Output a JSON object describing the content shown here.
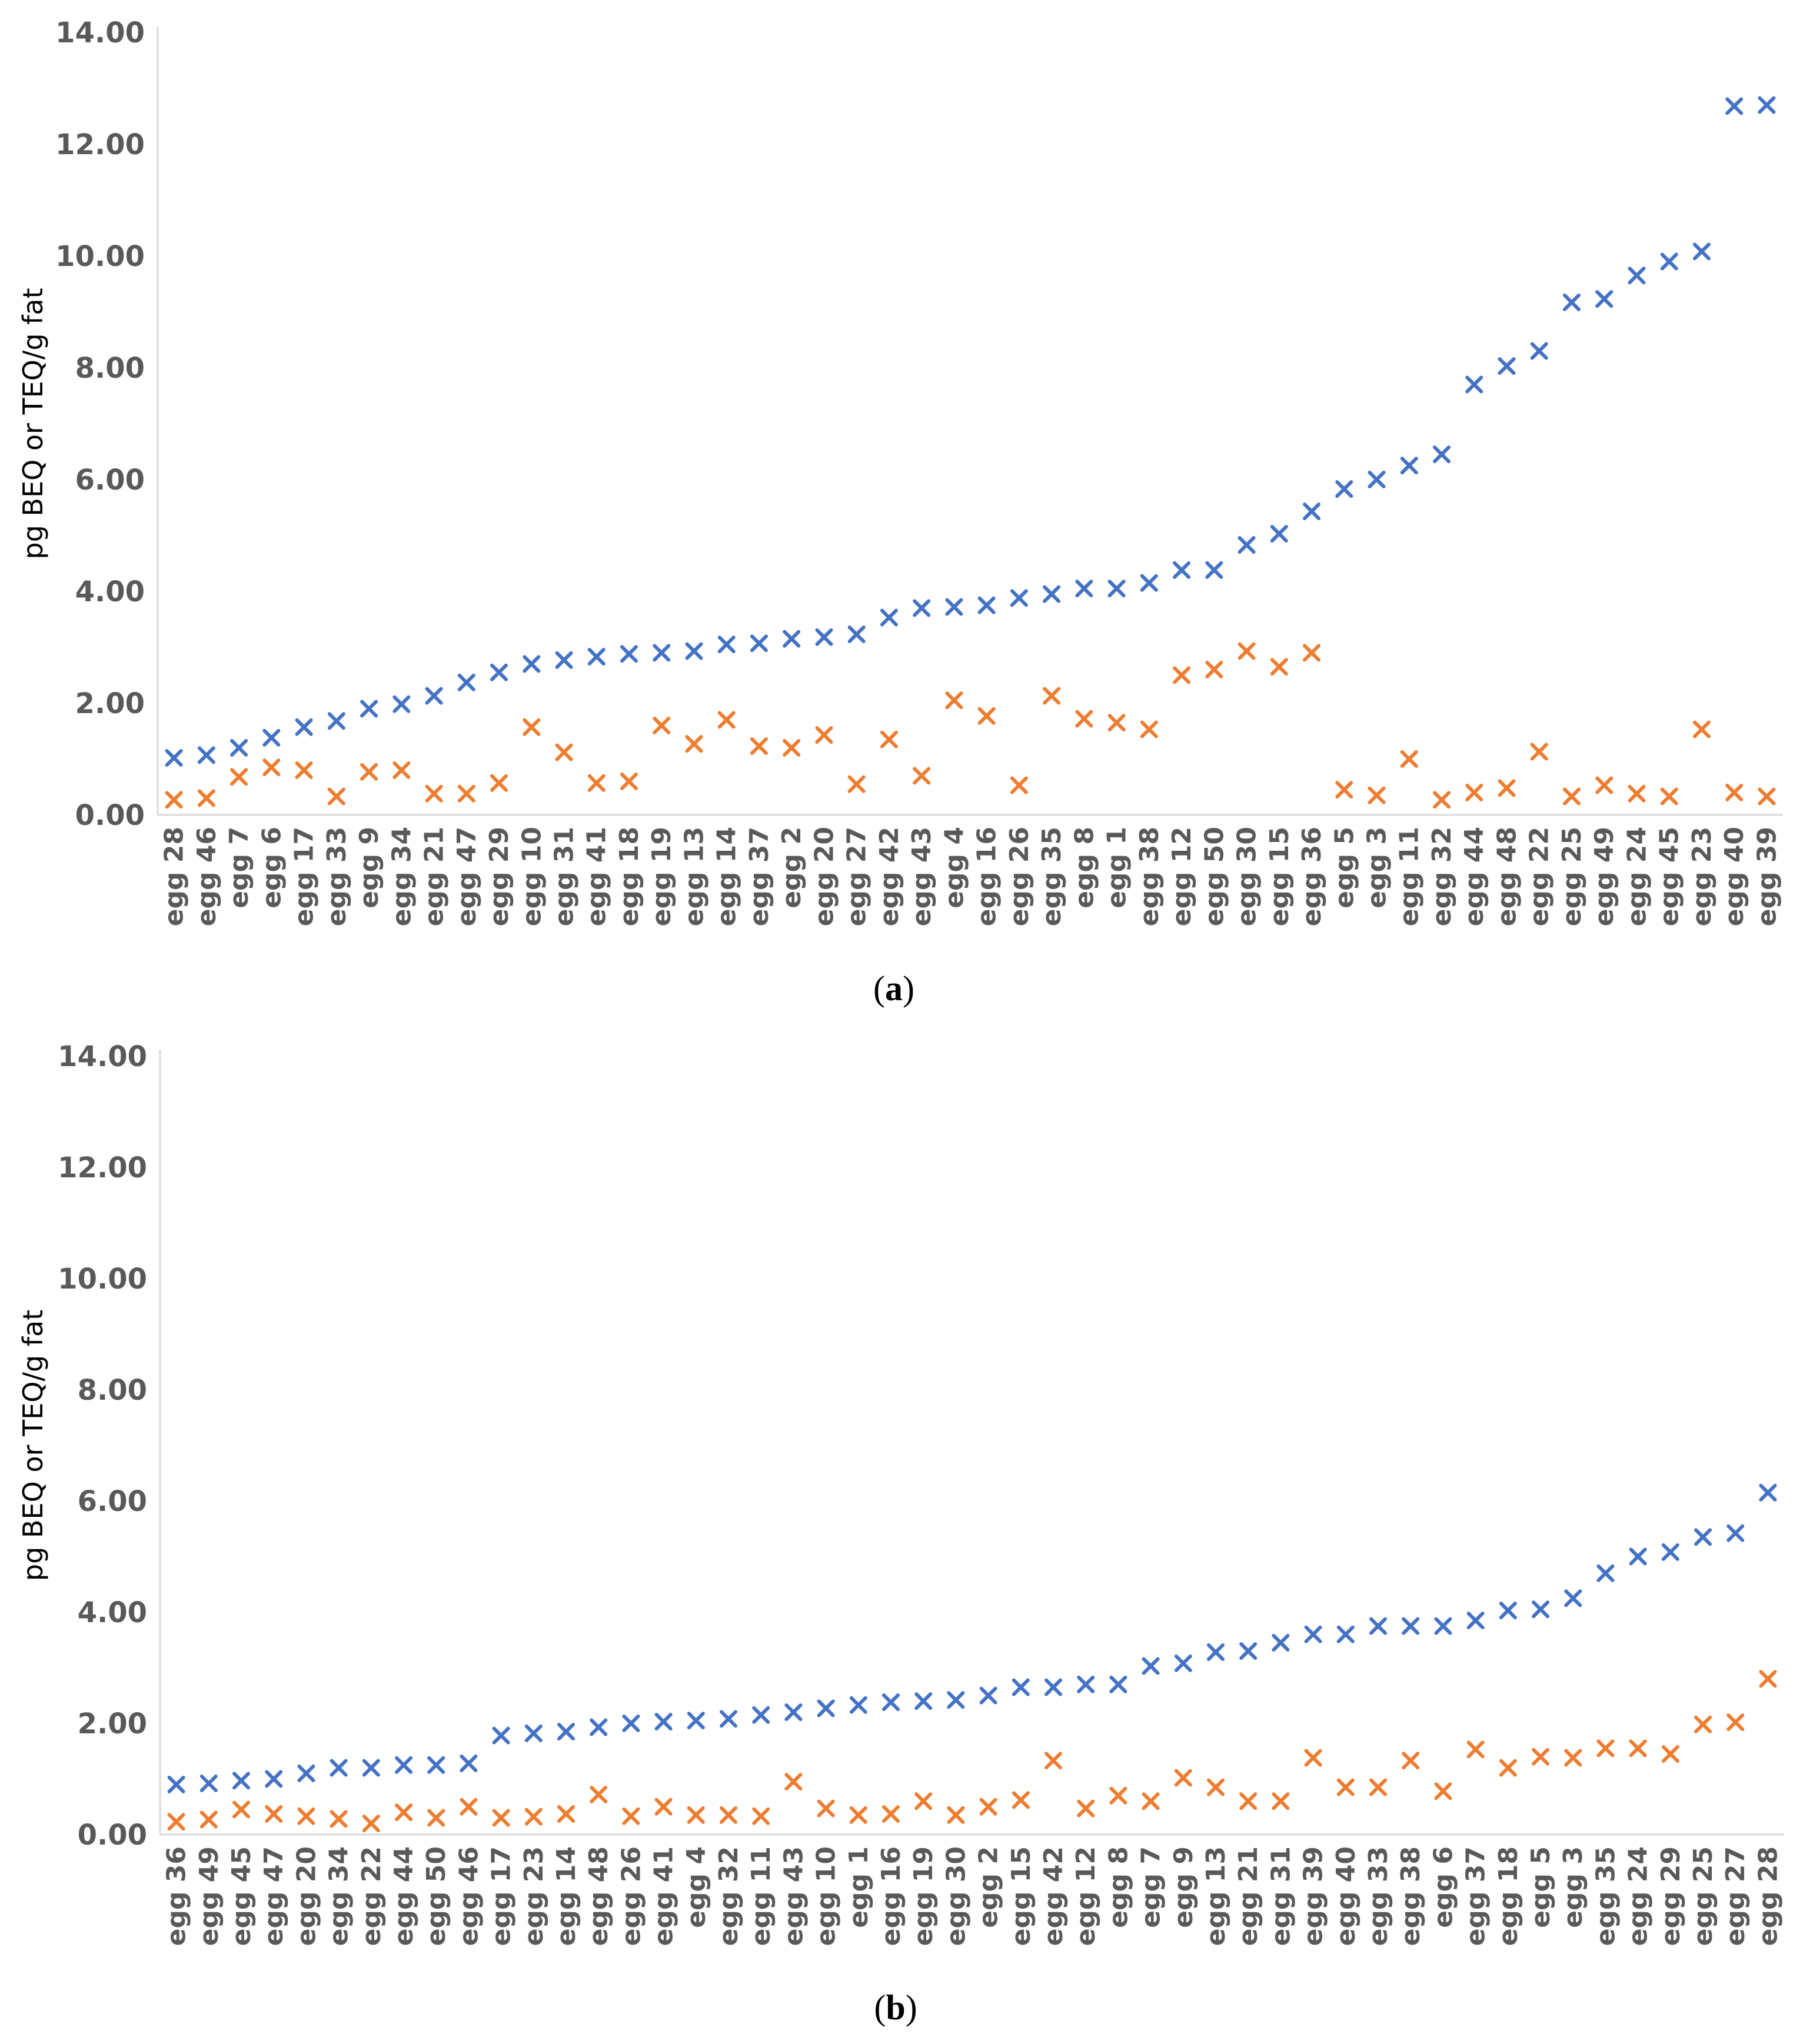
{
  "colors": {
    "series1": "#4472C4",
    "series2": "#ED7D31",
    "axis": "#D9D9D9",
    "text": "#595959"
  },
  "chart_data": [
    {
      "type": "scatter",
      "panel": "a",
      "caption": {
        "open": "(",
        "letter": "a",
        "close": ")"
      },
      "ylabel": "pg BEQ or TEQ/g fat",
      "ylim": [
        0,
        14
      ],
      "yticks": [
        "0.00",
        "2.00",
        "4.00",
        "6.00",
        "8.00",
        "10.00",
        "12.00",
        "14.00"
      ],
      "marker": "x",
      "grid": false,
      "categories": [
        "egg 28",
        "egg 46",
        "egg 7",
        "egg 6",
        "egg 17",
        "egg 33",
        "egg 9",
        "egg 34",
        "egg 21",
        "egg 47",
        "egg 29",
        "egg 10",
        "egg 31",
        "egg 41",
        "egg 18",
        "egg 19",
        "egg 13",
        "egg 14",
        "egg 37",
        "egg 2",
        "egg 20",
        "egg 27",
        "egg 42",
        "egg 43",
        "egg 4",
        "egg 16",
        "egg 26",
        "egg 35",
        "egg 8",
        "egg 1",
        "egg 38",
        "egg 12",
        "egg 50",
        "egg 30",
        "egg 15",
        "egg 36",
        "egg 5",
        "egg 3",
        "egg 11",
        "egg 32",
        "egg 44",
        "egg 48",
        "egg 22",
        "egg 25",
        "egg 49",
        "egg 24",
        "egg 45",
        "egg 23",
        "egg 40",
        "egg 39"
      ],
      "series": [
        {
          "values": [
            1.02,
            1.07,
            1.2,
            1.38,
            1.57,
            1.68,
            1.9,
            1.98,
            2.13,
            2.37,
            2.55,
            2.7,
            2.77,
            2.83,
            2.88,
            2.9,
            2.93,
            3.05,
            3.07,
            3.15,
            3.18,
            3.23,
            3.53,
            3.7,
            3.72,
            3.75,
            3.88,
            3.95,
            4.05,
            4.05,
            4.15,
            4.38,
            4.38,
            4.83,
            5.03,
            5.43,
            5.83,
            6.0,
            6.25,
            6.45,
            7.7,
            8.03,
            8.3,
            9.17,
            9.23,
            9.65,
            9.9,
            10.08,
            12.68,
            12.7
          ]
        },
        {
          "values": [
            0.27,
            0.3,
            0.68,
            0.85,
            0.8,
            0.33,
            0.77,
            0.8,
            0.38,
            0.38,
            0.57,
            1.57,
            1.12,
            0.57,
            0.6,
            1.6,
            1.27,
            1.7,
            1.23,
            1.2,
            1.43,
            0.55,
            1.35,
            0.7,
            2.05,
            1.77,
            0.53,
            2.13,
            1.72,
            1.65,
            1.53,
            2.5,
            2.6,
            2.93,
            2.65,
            2.9,
            0.45,
            0.35,
            1.0,
            0.27,
            0.4,
            0.48,
            1.13,
            0.33,
            0.53,
            0.38,
            0.33,
            1.53,
            0.4,
            0.33
          ]
        }
      ]
    },
    {
      "type": "scatter",
      "panel": "b",
      "caption": {
        "open": "(",
        "letter": "b",
        "close": ")"
      },
      "ylabel": "pg BEQ or TEQ/g fat",
      "ylim": [
        0,
        14
      ],
      "yticks": [
        "0.00",
        "2.00",
        "4.00",
        "6.00",
        "8.00",
        "10.00",
        "12.00",
        "14.00"
      ],
      "marker": "x",
      "grid": false,
      "categories": [
        "egg 36",
        "egg 49",
        "egg 45",
        "egg 47",
        "egg 20",
        "egg 34",
        "egg 22",
        "egg 44",
        "egg 50",
        "egg 46",
        "egg 17",
        "egg 23",
        "egg 14",
        "egg 48",
        "egg 26",
        "egg 41",
        "egg 4",
        "egg 32",
        "egg 11",
        "egg 43",
        "egg 10",
        "egg 1",
        "egg 16",
        "egg 19",
        "egg 30",
        "egg 2",
        "egg 15",
        "egg 42",
        "egg 12",
        "egg 8",
        "egg 7",
        "egg 9",
        "egg 13",
        "egg 21",
        "egg 31",
        "egg 39",
        "egg 40",
        "egg 33",
        "egg 38",
        "egg 6",
        "egg 37",
        "egg 18",
        "egg 5",
        "egg 3",
        "egg 35",
        "egg 24",
        "egg 29",
        "egg 25",
        "egg 27",
        "egg 28"
      ],
      "series": [
        {
          "values": [
            0.9,
            0.92,
            0.97,
            1.0,
            1.1,
            1.2,
            1.2,
            1.25,
            1.25,
            1.28,
            1.78,
            1.82,
            1.85,
            1.93,
            2.0,
            2.03,
            2.05,
            2.08,
            2.15,
            2.2,
            2.27,
            2.33,
            2.38,
            2.4,
            2.42,
            2.5,
            2.65,
            2.65,
            2.7,
            2.7,
            3.03,
            3.08,
            3.28,
            3.3,
            3.45,
            3.6,
            3.6,
            3.75,
            3.75,
            3.75,
            3.85,
            4.03,
            4.05,
            4.25,
            4.7,
            5.0,
            5.08,
            5.35,
            5.42,
            6.15
          ]
        },
        {
          "values": [
            0.23,
            0.27,
            0.45,
            0.37,
            0.33,
            0.28,
            0.2,
            0.4,
            0.3,
            0.5,
            0.3,
            0.32,
            0.37,
            0.72,
            0.33,
            0.5,
            0.35,
            0.35,
            0.33,
            0.95,
            0.47,
            0.35,
            0.37,
            0.6,
            0.35,
            0.5,
            0.62,
            1.33,
            0.47,
            0.7,
            0.6,
            1.02,
            0.85,
            0.6,
            0.6,
            1.38,
            0.85,
            0.85,
            1.33,
            0.78,
            1.53,
            1.2,
            1.4,
            1.38,
            1.55,
            1.55,
            1.45,
            1.98,
            2.02,
            2.8
          ]
        }
      ]
    }
  ]
}
